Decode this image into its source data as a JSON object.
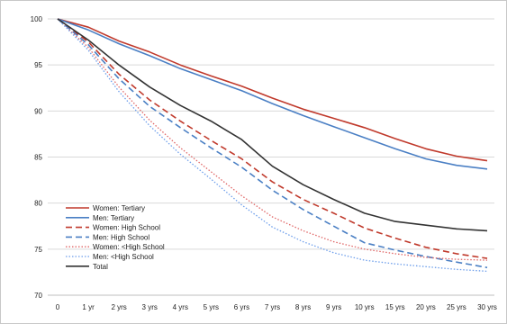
{
  "chart_data": {
    "type": "line",
    "title": "",
    "xlabel": "",
    "ylabel": "",
    "categories": [
      "0",
      "1 yr",
      "2 yrs",
      "3 yrs",
      "4 yrs",
      "5 yrs",
      "6 yrs",
      "7 yrs",
      "8 yrs",
      "9 yrs",
      "10 yrs",
      "15 yrs",
      "20 yrs",
      "25 yrs",
      "30 yrs"
    ],
    "ylim": [
      70,
      100
    ],
    "yticks": [
      "70",
      "75",
      "80",
      "85",
      "90",
      "95",
      "100"
    ],
    "grid": "horizontal",
    "legend_position": "bottom-left",
    "series": [
      {
        "name": "Women: Tertiary",
        "color": "#c0392b",
        "dash": "solid",
        "values": [
          100,
          99.1,
          97.6,
          96.4,
          95.0,
          93.8,
          92.7,
          91.4,
          90.2,
          89.2,
          88.2,
          87.0,
          85.9,
          85.1,
          84.6
        ]
      },
      {
        "name": "Men: Tertiary",
        "color": "#4a7fc4",
        "dash": "solid",
        "values": [
          100,
          98.8,
          97.3,
          96.0,
          94.6,
          93.4,
          92.2,
          90.8,
          89.5,
          88.3,
          87.1,
          85.9,
          84.8,
          84.1,
          83.7
        ]
      },
      {
        "name": "Women: High School",
        "color": "#c0392b",
        "dash": "dashed",
        "values": [
          100,
          97.5,
          94.0,
          91.2,
          88.9,
          86.8,
          84.8,
          82.3,
          80.4,
          78.9,
          77.3,
          76.2,
          75.2,
          74.5,
          74.0
        ]
      },
      {
        "name": "Men: High School",
        "color": "#4a7fc4",
        "dash": "dashed",
        "values": [
          100,
          97.2,
          93.5,
          90.5,
          88.2,
          86.0,
          83.9,
          81.4,
          79.3,
          77.5,
          75.7,
          74.9,
          74.2,
          73.6,
          73.0
        ]
      },
      {
        "name": "Women: <High School",
        "color": "#e06666",
        "dash": "dotted",
        "values": [
          100,
          96.9,
          92.6,
          89.0,
          86.0,
          83.4,
          80.8,
          78.5,
          77.0,
          75.8,
          75.0,
          74.5,
          74.1,
          73.9,
          73.8
        ]
      },
      {
        "name": "Men: <High School",
        "color": "#6d9eeb",
        "dash": "dotted",
        "values": [
          100,
          96.6,
          92.1,
          88.4,
          85.3,
          82.6,
          79.8,
          77.4,
          75.8,
          74.6,
          73.8,
          73.4,
          73.1,
          72.8,
          72.6
        ]
      },
      {
        "name": "Total",
        "color": "#333333",
        "dash": "solid",
        "values": [
          100,
          97.7,
          95.0,
          92.6,
          90.6,
          88.9,
          86.9,
          84.0,
          82.0,
          80.4,
          78.9,
          78.0,
          77.6,
          77.2,
          77.0
        ]
      }
    ]
  }
}
